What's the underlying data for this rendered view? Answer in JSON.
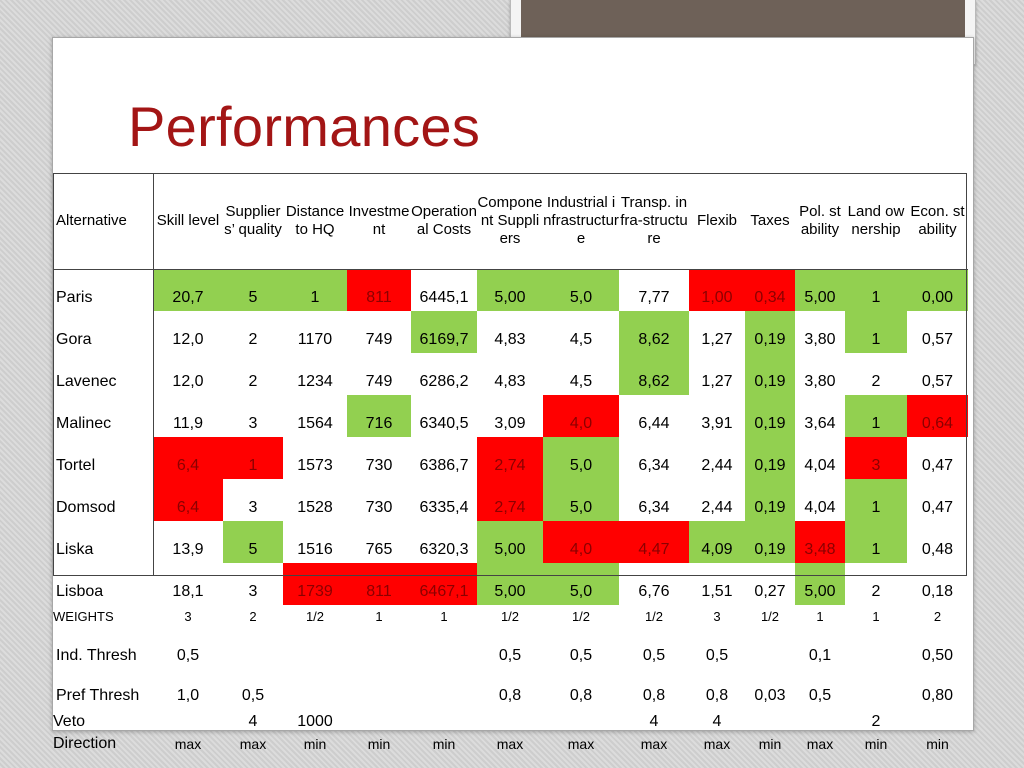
{
  "title": "Performances",
  "headers": [
    "Alternative",
    "Skill level",
    "Suppliers’ quality",
    "Distance to HQ",
    "Investment",
    "Operational Costs",
    "Component Suppliers",
    "Industrial infrastructure",
    "Transp. infra-structure",
    "Flexib",
    "Taxes",
    "Pol. stability",
    "Land ownership",
    "Econ. stability"
  ],
  "rows": [
    {
      "name": "Paris",
      "values": [
        "20,7",
        "5",
        "1",
        "811",
        "6445,1",
        "5,00",
        "5,0",
        "7,77",
        "1,00",
        "0,34",
        "5,00",
        "1",
        "0,00"
      ],
      "colors": [
        "g",
        "g",
        "g",
        "r",
        "",
        "g",
        "g",
        "",
        "r",
        "r",
        "g",
        "g",
        "g"
      ]
    },
    {
      "name": "Gora",
      "values": [
        "12,0",
        "2",
        "1170",
        "749",
        "6169,7",
        "4,83",
        "4,5",
        "8,62",
        "1,27",
        "0,19",
        "3,80",
        "1",
        "0,57"
      ],
      "colors": [
        "",
        "",
        "",
        "",
        "g",
        "",
        "",
        "g",
        "",
        "g",
        "",
        "g",
        ""
      ]
    },
    {
      "name": "Lavenec",
      "values": [
        "12,0",
        "2",
        "1234",
        "749",
        "6286,2",
        "4,83",
        "4,5",
        "8,62",
        "1,27",
        "0,19",
        "3,80",
        "2",
        "0,57"
      ],
      "colors": [
        "",
        "",
        "",
        "",
        "",
        "",
        "",
        "g",
        "",
        "g",
        "",
        "",
        ""
      ]
    },
    {
      "name": "Malinec",
      "values": [
        "11,9",
        "3",
        "1564",
        "716",
        "6340,5",
        "3,09",
        "4,0",
        "6,44",
        "3,91",
        "0,19",
        "3,64",
        "1",
        "0,64"
      ],
      "colors": [
        "",
        "",
        "",
        "g",
        "",
        "",
        "r",
        "",
        "",
        "g",
        "",
        "g",
        "r"
      ]
    },
    {
      "name": "Tortel",
      "values": [
        "6,4",
        "1",
        "1573",
        "730",
        "6386,7",
        "2,74",
        "5,0",
        "6,34",
        "2,44",
        "0,19",
        "4,04",
        "3",
        "0,47"
      ],
      "colors": [
        "r",
        "r",
        "",
        "",
        "",
        "r",
        "g",
        "",
        "",
        "g",
        "",
        "r",
        ""
      ]
    },
    {
      "name": "Domsod",
      "values": [
        "6,4",
        "3",
        "1528",
        "730",
        "6335,4",
        "2,74",
        "5,0",
        "6,34",
        "2,44",
        "0,19",
        "4,04",
        "1",
        "0,47"
      ],
      "colors": [
        "r",
        "",
        "",
        "",
        "",
        "r",
        "g",
        "",
        "",
        "g",
        "",
        "g",
        ""
      ]
    },
    {
      "name": "Liska",
      "values": [
        "13,9",
        "5",
        "1516",
        "765",
        "6320,3",
        "5,00",
        "4,0",
        "4,47",
        "4,09",
        "0,19",
        "3,48",
        "1",
        "0,48"
      ],
      "colors": [
        "",
        "g",
        "",
        "",
        "",
        "g",
        "r",
        "r",
        "g",
        "g",
        "r",
        "g",
        ""
      ]
    },
    {
      "name": "Lisboa",
      "values": [
        "18,1",
        "3",
        "1739",
        "811",
        "6467,1",
        "5,00",
        "5,0",
        "6,76",
        "1,51",
        "0,27",
        "5,00",
        "2",
        "0,18"
      ],
      "colors": [
        "",
        "",
        "r",
        "r",
        "r",
        "g",
        "g",
        "",
        "",
        "",
        "g",
        "",
        ""
      ]
    }
  ],
  "weights": {
    "label": "WEIGHTS",
    "values": [
      "3",
      "2",
      "1/2",
      "1",
      "1",
      "1/2",
      "1/2",
      "1/2",
      "3",
      "1/2",
      "1",
      "1",
      "2"
    ]
  },
  "ind_thresh": {
    "label": "Ind. Thresh",
    "values": [
      "0,5",
      "",
      "",
      "",
      "",
      "0,5",
      "0,5",
      "0,5",
      "0,5",
      "",
      "0,1",
      "",
      "0,50"
    ]
  },
  "pref_thresh": {
    "label": "Pref Thresh",
    "values": [
      "1,0",
      "0,5",
      "",
      "",
      "",
      "0,8",
      "0,8",
      "0,8",
      "0,8",
      "0,03",
      "0,5",
      "",
      "0,80"
    ]
  },
  "veto": {
    "label": "Veto",
    "values": [
      "",
      "4",
      "1000",
      "",
      "",
      "",
      "",
      "4",
      "4",
      "",
      "",
      "2",
      ""
    ]
  },
  "direction": {
    "label": "Direction",
    "values": [
      "max",
      "max",
      "min",
      "min",
      "min",
      "max",
      "max",
      "max",
      "max",
      "min",
      "max",
      "min",
      "min"
    ]
  }
}
